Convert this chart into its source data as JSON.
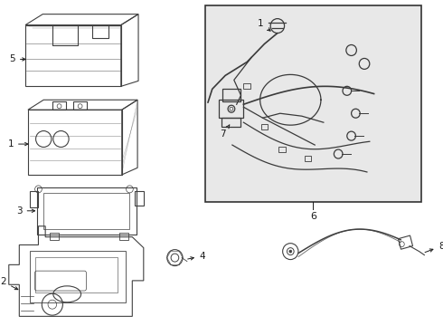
{
  "bg_color": "#ffffff",
  "line_color": "#404040",
  "label_color": "#1a1a1a",
  "inset_bg": "#e8e8e8",
  "inset_border": "#333333",
  "figsize": [
    4.9,
    3.6
  ],
  "dpi": 100,
  "part5_label": "5",
  "part1_label": "1",
  "part3_label": "3",
  "part2_label": "2",
  "part4_label": "4",
  "part6_label": "6",
  "part7_label": "7",
  "part8_label": "8",
  "part1_label_inset": "1"
}
